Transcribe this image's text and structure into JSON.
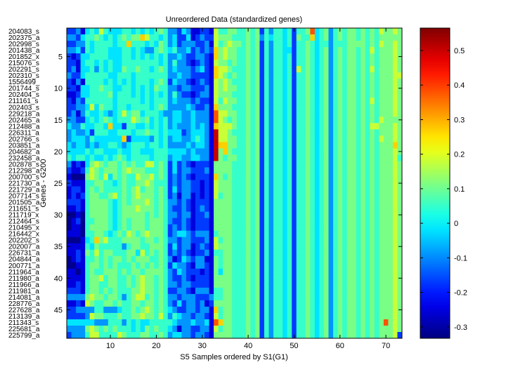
{
  "chart_data": {
    "type": "heatmap",
    "title": "Unreordered Data (standardized genes)",
    "xlabel": "S5 Samples ordered by S1(G1)",
    "ylabel": "Genes - G200",
    "xlim": [
      0.5,
      73.5
    ],
    "ylim": [
      0.5,
      49.5
    ],
    "x_ticks": [
      10,
      20,
      30,
      40,
      50,
      60,
      70
    ],
    "y_ticks": [
      5,
      10,
      15,
      20,
      25,
      30,
      35,
      40,
      45
    ],
    "colormap": "jet",
    "clim": [
      -0.333,
      0.565
    ],
    "colorbar_ticks": [
      -0.3,
      -0.2,
      -0.1,
      0,
      0.1,
      0.2,
      0.3,
      0.4,
      0.5
    ],
    "colorbar_tick_labels": [
      "-0.3",
      "-0.2",
      "-0.1",
      "0",
      "0.1",
      "0.2",
      "0.3",
      "0.4",
      "0.5"
    ],
    "row_labels": [
      "204083_s",
      "202375_a",
      "202998_s",
      "201438_a",
      "201852_x",
      "215076_s",
      "202291_s",
      "202310_s",
      "1556499_",
      "201744_s",
      "202404_s",
      "211161_s",
      "202403_s",
      "229218_a",
      "202465_a",
      "212488_a",
      "226311_a",
      "202766_s",
      "203851_a",
      "204682_a",
      "232458_a",
      "202878_s",
      "212298_a",
      "200700_s",
      "221730_a",
      "221729_a",
      "207714_s",
      "201505_a",
      "211651_s",
      "211719_x",
      "212464_s",
      "210495_x",
      "216442_x",
      "202202_s",
      "202007_a",
      "226731_a",
      "204844_a",
      "200771_a",
      "211964_a",
      "211980_a",
      "211966_a",
      "211981_a",
      "214081_a",
      "228776_a",
      "227628_a",
      "213139_a",
      "211343_s",
      "225681_a",
      "225799_a"
    ],
    "value_encoding": {
      "0": -0.32,
      "1": -0.25,
      "2": -0.17,
      "3": -0.09,
      "4": -0.02,
      "5": 0.05,
      "6": 0.11,
      "7": 0.18,
      "8": 0.27,
      "9": 0.38,
      "A": 0.5
    },
    "rows_encoded": [
      "2231454754445545454565332431122175566556562535545255694563565665656576676",
      "3324556545456566875545342241232276665556563545545265584563565665656566666",
      "2233545555455855545465342333223175676656562535545255654553555666656576676",
      "3342545554445545433565453342323286766556562535544255654563565665657566676",
      "2124455554445545454545334322332186766556562535545255654563565665656566676",
      "2214554545445555555545353321232176656556562535545255654563565665656566676",
      "2314453545446556554565343332342187765556562535545275654563565665657566676",
      "3224555554455545555555334332222187656556562535545255654563565665656566677",
      "2131555545454545554565243321232176765556562535545255654563565665656566676",
      "2214455655445545454655332332223176766556562535545255654563565665656566676",
      "1124455556455545454545353221233176665556562535545255654563565665656566676",
      "2132555555455555454555343332322175766556562535545255654563565665657566676",
      "2233474655455455554565333343223186665556562535545255654563565665656566676",
      "2313544543457566455543344334333197766556562535545255654563565665656566676",
      "3322454565455576564545344334333197656556562535545255654563565665656576666",
      "4335445548442554454545343334343187776556562535545255654563565665657766676",
      "34334255544555455655454442344431A7765556562535545255654563565665656566676",
      "34443544444482444435453443345431A7766556562535545255654563565665656576676",
      "43443434455434555455453333434431A8866556562535545255654563565665656566686",
      "44445455444544554445554444343331A6865556562535545255654563565665656566676",
      "54554544545654555545553443344331A6566556562535545255654563565665656566675",
      "3121467656656565577565242321222166665556562535545255654563565665656566676",
      "2112576566656766655565242332223166665556562535545255654563565665656566676",
      "1000676574656557667565232321222186565556562535545255654563565665656566676",
      "2111556655456556676555232332212176665556562535545255654563565665656566676",
      "1221565655556567566565242332212176665556562535545255654563565665656566676",
      "1212566556756567666565231331212175665556562535545255654563565665656566676",
      "2221566665456566676565332321222166665556562535545255654563565665656566676",
      "1121566665456667666565322321232166665556562535545255654563565665656566676",
      "0010566665456666656565332331223166665556562535545255654563565665656566676",
      "0120556665456566656665322321222166665556562535545255654563565665656566676",
      "0110566665456566656665232321222166665556562535545255654563565665656566676",
      "1110556654565765676665234432333156665556562535545255654563565665656566676",
      "0001458675556666566565332332223175665556562535545255654563565665656566676",
      "1111546555553566556665242331232176665556562535545255654563565665656566676",
      "1121657566555664756565232321223155665556562535545255654563565665656566676",
      "0121556565665656665565312432331165665556562535545255654563565665656566676",
      "0011566565655565656565243321332165665556562535545255654563565665656566676",
      "1101565566656566566665324322212164665556562535545255654563565665656566676",
      "1111566756655656766565322321222166665556562535545255654563565665656566676",
      "1121566556655656766565332332222166665556562535545255654563565665656566676",
      "2221566565655566766565223321333155665556562535545255654563565665656566676",
      "3333676656653567756565332333222355665556562535545255654563565665656566676",
      "1121765566565566566565324233231266665556562535545255654563565665656566676",
      "2233335533345565676565432233233185665556562535545255654563565665656566676",
      "2222376655565566766575354332332175665556562535545255654563565665656566676",
      "4444443335553545445555543334334198665556562535545255654563565665656569676",
      "3333676565655545465655431332233175665556562535545255654563565665656566676",
      "2333577555576555665565344332332166665556562535545255654563565665656566672"
    ]
  }
}
